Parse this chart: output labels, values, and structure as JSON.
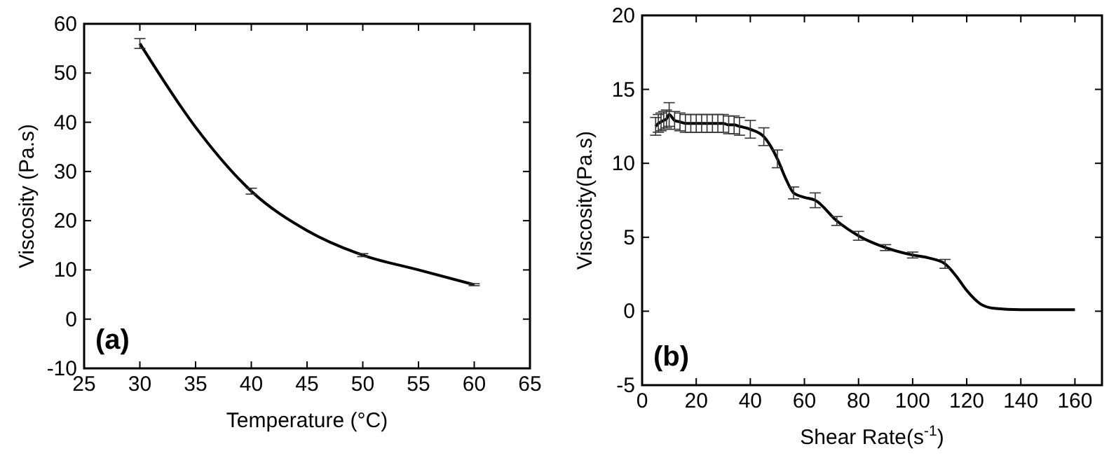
{
  "chart_data": [
    {
      "type": "line",
      "xlabel": "Temperature (°C)",
      "ylabel": "Viscosity (Pa.s)",
      "annotations": [
        "(a)"
      ],
      "xlim": [
        25,
        65
      ],
      "xticks": [
        25,
        30,
        35,
        40,
        45,
        50,
        55,
        60,
        65
      ],
      "ylim": [
        -10,
        60
      ],
      "yticks": [
        -10,
        0,
        10,
        20,
        30,
        40,
        50,
        60
      ],
      "marker": "none",
      "line_style": "solid",
      "series": [
        {
          "color": "#000000",
          "x": [
            30,
            35,
            40,
            45,
            50,
            55,
            60
          ],
          "values": [
            56,
            39,
            26,
            18,
            13,
            10,
            7
          ],
          "errors": [
            1,
            null,
            0.6,
            null,
            0.3,
            null,
            0.2
          ]
        }
      ]
    },
    {
      "type": "line",
      "xlabel": "Shear Rate(s$^{-1}$)",
      "ylabel": "Viscosity(Pa.s)",
      "annotations": [
        "(b)"
      ],
      "xlim": [
        0,
        170
      ],
      "xticks": [
        0,
        20,
        40,
        60,
        80,
        100,
        120,
        140,
        160
      ],
      "ylim": [
        -5,
        20
      ],
      "yticks": [
        -5,
        0,
        5,
        10,
        15,
        20
      ],
      "marker": "none",
      "line_style": "solid",
      "series": [
        {
          "color": "#000000",
          "x": [
            5,
            6,
            7,
            8,
            9,
            10,
            12,
            14,
            16,
            18,
            20,
            22,
            24,
            26,
            28,
            30,
            32,
            34,
            36,
            40,
            45,
            50,
            53,
            56,
            60,
            64,
            72,
            80,
            90,
            100,
            106,
            112,
            116,
            120,
            125,
            130,
            140,
            160
          ],
          "values": [
            12.5,
            12.7,
            12.8,
            12.9,
            13.0,
            13.3,
            12.9,
            12.8,
            12.7,
            12.7,
            12.7,
            12.7,
            12.7,
            12.7,
            12.7,
            12.7,
            12.6,
            12.6,
            12.5,
            12.3,
            11.8,
            10.3,
            9.0,
            8.0,
            7.7,
            7.5,
            6.1,
            5.1,
            4.3,
            3.8,
            3.6,
            3.2,
            2.4,
            1.4,
            0.5,
            0.2,
            0.1,
            0.1
          ],
          "errors": [
            0.6,
            0.6,
            0.6,
            0.6,
            0.6,
            0.8,
            0.6,
            0.6,
            0.6,
            0.6,
            0.6,
            0.6,
            0.6,
            0.6,
            0.6,
            0.6,
            0.6,
            0.6,
            0.6,
            0.6,
            0.6,
            0.6,
            null,
            0.4,
            null,
            0.5,
            0.3,
            0.3,
            0.2,
            0.2,
            null,
            0.3,
            null,
            null,
            null,
            null,
            null,
            null
          ]
        }
      ]
    }
  ]
}
